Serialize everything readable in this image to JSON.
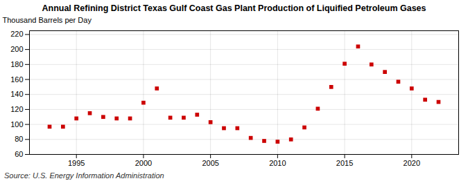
{
  "chart_data": {
    "type": "scatter",
    "title": "Annual Refining District Texas Gulf Coast Gas Plant Production of Liquified Petroleum Gases",
    "ylabel": "Thousand Barrels per Day",
    "source": "Source: U.S. Energy Information Administration",
    "x": [
      1993,
      1994,
      1995,
      1996,
      1997,
      1998,
      1999,
      2000,
      2001,
      2002,
      2003,
      2004,
      2005,
      2006,
      2007,
      2008,
      2009,
      2010,
      2011,
      2012,
      2013,
      2014,
      2015,
      2016,
      2017,
      2018,
      2019,
      2020,
      2021,
      2022
    ],
    "values": [
      97,
      97,
      108,
      115,
      110,
      108,
      108,
      129,
      148,
      109,
      109,
      113,
      103,
      95,
      95,
      82,
      78,
      77,
      80,
      96,
      121,
      150,
      181,
      204,
      180,
      170,
      157,
      148,
      133,
      130
    ],
    "color": "#cc0000",
    "marker": "square",
    "xlim": [
      1991.5,
      2023.5
    ],
    "xticks": [
      1995,
      2000,
      2005,
      2010,
      2015,
      2020
    ],
    "ylim": [
      60,
      225
    ],
    "yticks": [
      60,
      80,
      100,
      120,
      140,
      160,
      180,
      200,
      220
    ],
    "grid": true
  }
}
